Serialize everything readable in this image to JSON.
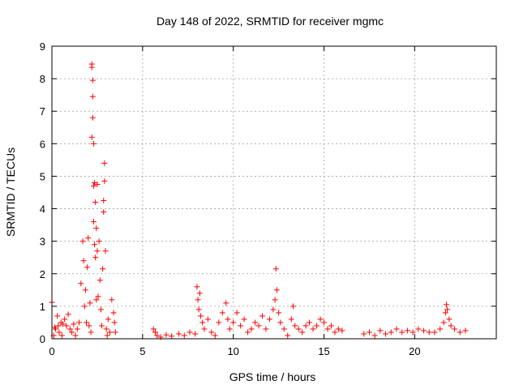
{
  "chart_data": {
    "type": "scatter",
    "title": "Day 148 of 2022, SRMTID for receiver mgmc",
    "xlabel": "GPS time / hours",
    "ylabel": "SRMTID / TECUs",
    "xlim": [
      0,
      24.5
    ],
    "ylim": [
      0,
      9
    ],
    "xticks": [
      0,
      5,
      10,
      15,
      20
    ],
    "yticks": [
      0,
      1,
      2,
      3,
      4,
      5,
      6,
      7,
      8,
      9
    ],
    "grid": true,
    "marker": "+",
    "color": "#ff0000",
    "series": [
      {
        "name": "SRMTID",
        "x": [
          0.0,
          0.1,
          0.15,
          0.2,
          0.3,
          0.35,
          0.4,
          0.5,
          0.55,
          0.6,
          0.7,
          0.8,
          0.9,
          1.0,
          1.1,
          1.2,
          1.3,
          1.4,
          1.5,
          1.6,
          1.7,
          1.75,
          1.8,
          1.85,
          1.9,
          1.95,
          2.0,
          2.05,
          2.1,
          2.15,
          2.2,
          2.2,
          2.2,
          2.25,
          2.25,
          2.25,
          2.3,
          2.3,
          2.3,
          2.35,
          2.35,
          2.4,
          2.4,
          2.45,
          2.45,
          2.5,
          2.5,
          2.55,
          2.6,
          2.65,
          2.7,
          2.75,
          2.8,
          2.85,
          2.85,
          2.9,
          2.9,
          2.95,
          3.0,
          3.05,
          3.1,
          3.2,
          3.3,
          3.4,
          3.45,
          3.5,
          5.6,
          5.7,
          5.8,
          6.0,
          6.3,
          6.6,
          7.0,
          7.3,
          7.6,
          7.9,
          8.0,
          8.05,
          8.1,
          8.15,
          8.2,
          8.3,
          8.4,
          8.6,
          8.8,
          9.0,
          9.2,
          9.4,
          9.6,
          9.7,
          9.8,
          10.0,
          10.2,
          10.4,
          10.6,
          10.8,
          11.0,
          11.2,
          11.4,
          11.6,
          11.8,
          12.0,
          12.2,
          12.3,
          12.35,
          12.4,
          12.5,
          12.6,
          12.8,
          13.0,
          13.2,
          13.3,
          13.4,
          13.6,
          13.8,
          14.0,
          14.2,
          14.4,
          14.6,
          14.8,
          15.0,
          15.2,
          15.4,
          15.6,
          15.8,
          16.0,
          17.2,
          17.5,
          17.8,
          18.1,
          18.4,
          18.7,
          19.0,
          19.3,
          19.6,
          19.9,
          20.2,
          20.5,
          20.8,
          21.1,
          21.4,
          21.6,
          21.7,
          21.75,
          21.8,
          21.9,
          22.0,
          22.2,
          22.5,
          22.8
        ],
        "y": [
          1.12,
          0.1,
          0.35,
          0.3,
          0.7,
          0.4,
          0.2,
          0.5,
          0.1,
          0.45,
          0.6,
          0.4,
          0.75,
          0.3,
          0.2,
          0.45,
          0.1,
          0.3,
          0.5,
          1.7,
          3.0,
          2.4,
          1.0,
          1.5,
          0.5,
          2.2,
          3.1,
          0.4,
          1.1,
          0.2,
          8.45,
          8.35,
          6.2,
          7.95,
          7.45,
          6.8,
          6.0,
          4.7,
          3.6,
          4.8,
          2.9,
          4.2,
          2.5,
          3.4,
          1.2,
          4.75,
          2.7,
          1.3,
          3.0,
          1.8,
          0.9,
          0.4,
          2.15,
          3.9,
          4.25,
          5.4,
          4.85,
          2.7,
          0.3,
          0.1,
          0.6,
          0.2,
          1.2,
          0.8,
          0.5,
          0.2,
          0.3,
          0.2,
          0.1,
          0.05,
          0.12,
          0.08,
          0.15,
          0.1,
          0.2,
          0.15,
          1.6,
          1.2,
          0.9,
          1.4,
          0.7,
          0.5,
          0.3,
          0.6,
          0.2,
          0.1,
          0.5,
          0.8,
          1.1,
          0.6,
          0.3,
          0.5,
          0.8,
          0.4,
          0.6,
          0.2,
          0.3,
          0.5,
          0.4,
          0.7,
          0.3,
          0.6,
          0.9,
          1.2,
          2.15,
          1.5,
          0.8,
          0.5,
          0.3,
          0.1,
          0.6,
          1.0,
          0.4,
          0.3,
          0.2,
          0.4,
          0.5,
          0.3,
          0.4,
          0.6,
          0.5,
          0.3,
          0.4,
          0.2,
          0.3,
          0.25,
          0.15,
          0.2,
          0.1,
          0.25,
          0.15,
          0.2,
          0.3,
          0.2,
          0.25,
          0.2,
          0.3,
          0.25,
          0.2,
          0.2,
          0.3,
          0.5,
          0.8,
          1.05,
          0.9,
          0.6,
          0.4,
          0.3,
          0.2,
          0.25
        ]
      }
    ]
  }
}
